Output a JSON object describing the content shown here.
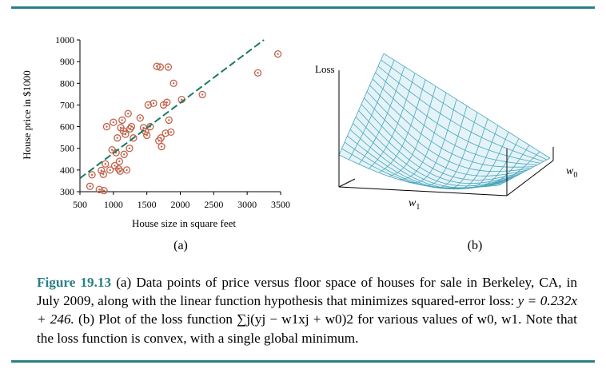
{
  "colors": {
    "rule": "#2a7f86",
    "caption_label": "#2a7f86",
    "points": "#c0624a",
    "fit_line": "#1a7a66",
    "surface_mesh": "#4aa6bd",
    "surface_fill": "#e4f3f7"
  },
  "chart_data": [
    {
      "type": "scatter",
      "xlabel": "House size in square feet",
      "ylabel": "House price in $1000",
      "xlim": [
        500,
        3500
      ],
      "ylim": [
        300,
        1000
      ],
      "xticks": [
        500,
        1000,
        1500,
        2000,
        2500,
        3000,
        3500
      ],
      "yticks": [
        300,
        400,
        500,
        600,
        700,
        800,
        900,
        1000
      ],
      "series": [
        {
          "kind": "points",
          "x": [
            650,
            680,
            790,
            820,
            850,
            860,
            880,
            900,
            950,
            980,
            1000,
            1020,
            1040,
            1060,
            1080,
            1090,
            1100,
            1110,
            1130,
            1150,
            1160,
            1180,
            1200,
            1220,
            1240,
            1250,
            1270,
            1300,
            1400,
            1450,
            1480,
            1500,
            1520,
            1550,
            1600,
            1650,
            1680,
            1700,
            1710,
            1720,
            1750,
            1780,
            1800,
            1820,
            1830,
            1860,
            1900,
            2020,
            2330,
            3160,
            3460
          ],
          "y": [
            325,
            378,
            310,
            398,
            380,
            305,
            428,
            600,
            400,
            493,
            620,
            420,
            480,
            548,
            405,
            440,
            395,
            595,
            630,
            580,
            472,
            565,
            400,
            660,
            500,
            590,
            600,
            548,
            640,
            595,
            578,
            560,
            700,
            600,
            708,
            878,
            535,
            875,
            548,
            508,
            700,
            570,
            712,
            875,
            630,
            575,
            800,
            725,
            748,
            848,
            935
          ]
        },
        {
          "kind": "line",
          "slope": 0.232,
          "intercept": 246,
          "x": [
            500,
            3250
          ]
        }
      ],
      "label": "(a)"
    },
    {
      "type": "surface",
      "zlabel": "Loss",
      "xlabel": "w",
      "xlabel_sub": "1",
      "ylabel": "w",
      "ylabel_sub": "0",
      "label": "(b)"
    }
  ],
  "caption": {
    "figure_label": "Figure 19.13",
    "line1": " (a) Data points of price versus floor space of houses for sale in Berkeley, CA,",
    "line2": "in July 2009, along with the linear function hypothesis that minimizes squared-error loss:",
    "equation_text": "y = 0.232x + 246.",
    "part_b_intro": " (b) Plot of the loss function ",
    "loss_expression": "∑j(yj − w1xj + w0)2",
    "for_various": " for various values of",
    "line4": "w0, w1. Note that the loss function is convex, with a single global minimum."
  }
}
